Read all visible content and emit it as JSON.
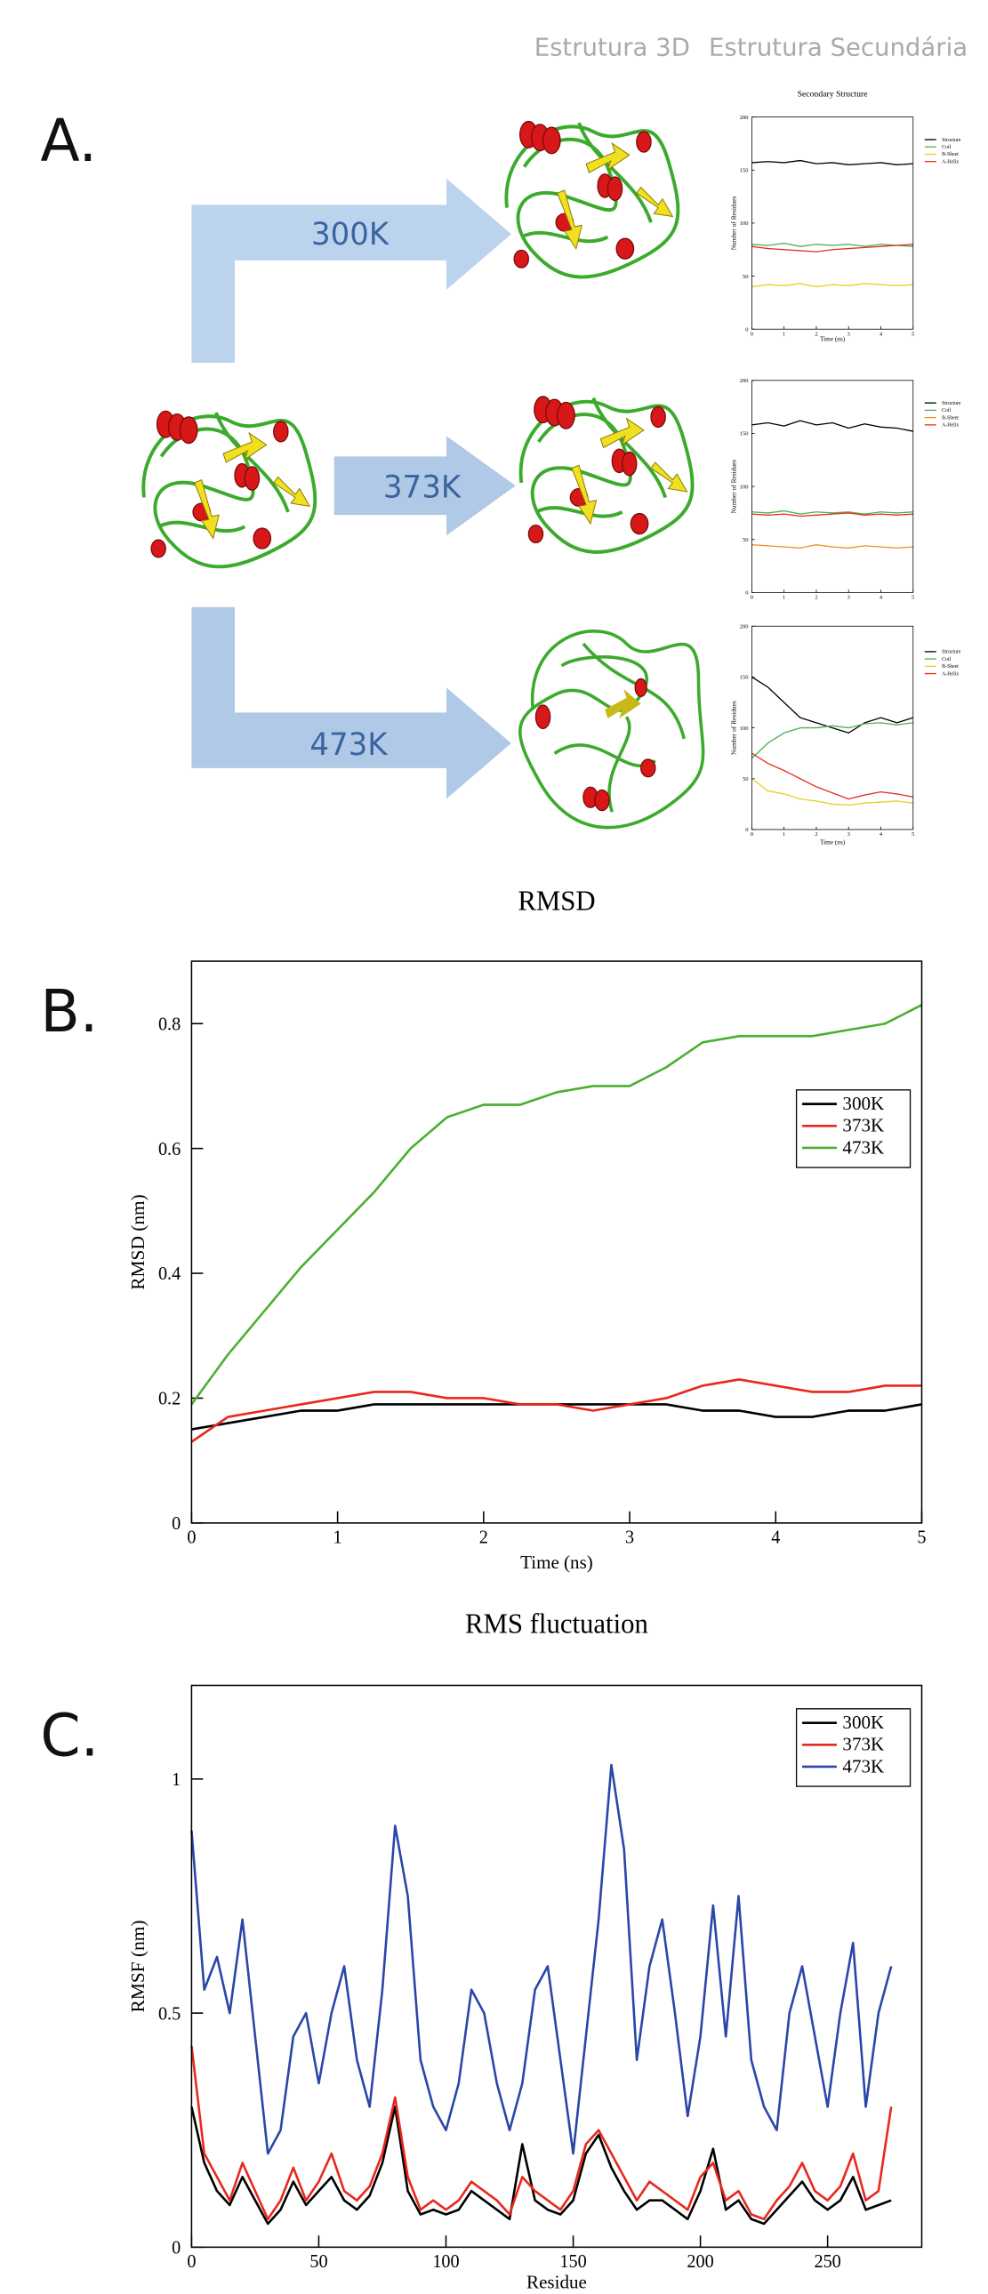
{
  "header": {
    "labels": [
      "Estrutura 3D",
      "Estrutura Secundária"
    ]
  },
  "panels": [
    "A.",
    "B.",
    "C."
  ],
  "arrows": [
    "300K",
    "373K",
    "473K"
  ],
  "chart_data": [
    {
      "type": "line",
      "title": "Secondary Structure",
      "x_label": "Time (ns)",
      "y_label": "Number of Residues",
      "x": [
        0,
        0.5,
        1,
        1.5,
        2,
        2.5,
        3,
        3.5,
        4,
        4.5,
        5
      ],
      "xlim": [
        0,
        5
      ],
      "ylim": [
        0,
        200
      ],
      "xticks": [
        0,
        1,
        2,
        3,
        4,
        5
      ],
      "yticks": [
        0,
        50,
        100,
        150,
        200
      ],
      "legend": "outside right",
      "series": [
        {
          "name": "Structure",
          "color": "#000000",
          "values": [
            157,
            158,
            157,
            159,
            156,
            157,
            155,
            156,
            157,
            155,
            156
          ]
        },
        {
          "name": "Coil",
          "color": "#4caf50",
          "values": [
            80,
            79,
            81,
            78,
            80,
            79,
            80,
            78,
            80,
            79,
            78
          ]
        },
        {
          "name": "B-Sheet",
          "color": "#e8cf20",
          "values": [
            40,
            42,
            41,
            43,
            40,
            42,
            41,
            43,
            42,
            41,
            42
          ]
        },
        {
          "name": "A-Helix",
          "color": "#e53020",
          "values": [
            78,
            76,
            75,
            74,
            73,
            75,
            76,
            77,
            78,
            79,
            80
          ]
        }
      ]
    },
    {
      "type": "line",
      "y_label": "Number of Residues",
      "x": [
        0,
        0.5,
        1,
        1.5,
        2,
        2.5,
        3,
        3.5,
        4,
        4.5,
        5
      ],
      "xlim": [
        0,
        5
      ],
      "ylim": [
        0,
        200
      ],
      "xticks": [
        0,
        1,
        2,
        3,
        4,
        5
      ],
      "yticks": [
        0,
        50,
        100,
        150,
        200
      ],
      "legend": "outside right",
      "series": [
        {
          "name": "Structure",
          "color": "#000000",
          "values": [
            158,
            160,
            157,
            162,
            158,
            160,
            155,
            159,
            156,
            155,
            152
          ]
        },
        {
          "name": "Coil",
          "color": "#4caf50",
          "values": [
            76,
            75,
            77,
            74,
            76,
            75,
            76,
            74,
            76,
            75,
            76
          ]
        },
        {
          "name": "B-Sheet",
          "color": "#f09020",
          "values": [
            45,
            44,
            43,
            42,
            45,
            43,
            42,
            44,
            43,
            42,
            43
          ]
        },
        {
          "name": "A-Helix",
          "color": "#e53020",
          "values": [
            74,
            73,
            74,
            72,
            73,
            74,
            75,
            73,
            74,
            73,
            74
          ]
        }
      ]
    },
    {
      "type": "line",
      "x_label": "Time (ns)",
      "y_label": "Number of Residues",
      "x": [
        0,
        0.5,
        1,
        1.5,
        2,
        2.5,
        3,
        3.5,
        4,
        4.5,
        5
      ],
      "xlim": [
        0,
        5
      ],
      "ylim": [
        0,
        200
      ],
      "xticks": [
        0,
        1,
        2,
        3,
        4,
        5
      ],
      "yticks": [
        0,
        50,
        100,
        150,
        200
      ],
      "legend": "outside right",
      "series": [
        {
          "name": "Structure",
          "color": "#000000",
          "values": [
            150,
            140,
            125,
            110,
            105,
            100,
            95,
            105,
            110,
            105,
            110
          ]
        },
        {
          "name": "Coil",
          "color": "#4caf50",
          "values": [
            70,
            85,
            95,
            100,
            100,
            102,
            100,
            104,
            105,
            103,
            105
          ]
        },
        {
          "name": "B-Sheet",
          "color": "#e8cf20",
          "values": [
            50,
            38,
            35,
            30,
            28,
            25,
            24,
            26,
            27,
            28,
            26
          ]
        },
        {
          "name": "A-Helix",
          "color": "#e53020",
          "values": [
            75,
            65,
            58,
            50,
            42,
            36,
            30,
            34,
            37,
            35,
            32
          ]
        }
      ]
    },
    {
      "type": "line",
      "title": "RMSD",
      "x_label": "Time (ns)",
      "y_label": "RMSD (nm)",
      "x": [
        0,
        0.25,
        0.5,
        0.75,
        1,
        1.25,
        1.5,
        1.75,
        2,
        2.25,
        2.5,
        2.75,
        3,
        3.25,
        3.5,
        3.75,
        4,
        4.25,
        4.5,
        4.75,
        5
      ],
      "xlim": [
        0,
        5
      ],
      "ylim": [
        0,
        0.9
      ],
      "xticks": [
        0,
        1,
        2,
        3,
        4,
        5
      ],
      "yticks": [
        0,
        0.2,
        0.4,
        0.6,
        0.8
      ],
      "legend": "upper right",
      "series": [
        {
          "name": "300K",
          "color": "#000000",
          "values": [
            0.15,
            0.16,
            0.17,
            0.18,
            0.18,
            0.19,
            0.19,
            0.19,
            0.19,
            0.19,
            0.19,
            0.19,
            0.19,
            0.19,
            0.18,
            0.18,
            0.17,
            0.17,
            0.18,
            0.18,
            0.19
          ]
        },
        {
          "name": "373K",
          "color": "#e8281e",
          "values": [
            0.13,
            0.17,
            0.18,
            0.19,
            0.2,
            0.21,
            0.21,
            0.2,
            0.2,
            0.19,
            0.19,
            0.18,
            0.19,
            0.2,
            0.22,
            0.23,
            0.22,
            0.21,
            0.21,
            0.22,
            0.22
          ]
        },
        {
          "name": "473K",
          "color": "#4caf32",
          "values": [
            0.19,
            0.27,
            0.34,
            0.41,
            0.47,
            0.53,
            0.6,
            0.65,
            0.67,
            0.67,
            0.69,
            0.7,
            0.7,
            0.73,
            0.77,
            0.78,
            0.78,
            0.78,
            0.79,
            0.8,
            0.83
          ]
        }
      ]
    },
    {
      "type": "line",
      "title": "RMS fluctuation",
      "x_label": "Residue",
      "y_label": "RMSF (nm)",
      "x": [
        0,
        5,
        10,
        15,
        20,
        25,
        30,
        35,
        40,
        45,
        50,
        55,
        60,
        65,
        70,
        75,
        80,
        85,
        90,
        95,
        100,
        105,
        110,
        115,
        120,
        125,
        130,
        135,
        140,
        145,
        150,
        155,
        160,
        165,
        170,
        175,
        180,
        185,
        190,
        195,
        200,
        205,
        210,
        215,
        220,
        225,
        230,
        235,
        240,
        245,
        250,
        255,
        260,
        265,
        270,
        275
      ],
      "xlim": [
        0,
        287
      ],
      "ylim": [
        0,
        1.2
      ],
      "xticks": [
        0,
        50,
        100,
        150,
        200,
        250
      ],
      "yticks": [
        0,
        0.5,
        1
      ],
      "legend": "upper right",
      "series": [
        {
          "name": "300K",
          "color": "#000000",
          "values": [
            0.3,
            0.18,
            0.12,
            0.09,
            0.15,
            0.1,
            0.05,
            0.08,
            0.14,
            0.09,
            0.12,
            0.15,
            0.1,
            0.08,
            0.11,
            0.18,
            0.3,
            0.12,
            0.07,
            0.08,
            0.07,
            0.08,
            0.12,
            0.1,
            0.08,
            0.06,
            0.22,
            0.1,
            0.08,
            0.07,
            0.1,
            0.2,
            0.24,
            0.17,
            0.12,
            0.08,
            0.1,
            0.1,
            0.08,
            0.06,
            0.12,
            0.21,
            0.08,
            0.1,
            0.06,
            0.05,
            0.08,
            0.11,
            0.14,
            0.1,
            0.08,
            0.1,
            0.15,
            0.08,
            0.09,
            0.1
          ]
        },
        {
          "name": "373K",
          "color": "#e8281e",
          "values": [
            0.43,
            0.2,
            0.15,
            0.1,
            0.18,
            0.12,
            0.06,
            0.1,
            0.17,
            0.1,
            0.14,
            0.2,
            0.12,
            0.1,
            0.13,
            0.2,
            0.32,
            0.15,
            0.08,
            0.1,
            0.08,
            0.1,
            0.14,
            0.12,
            0.1,
            0.07,
            0.15,
            0.12,
            0.1,
            0.08,
            0.12,
            0.22,
            0.25,
            0.2,
            0.15,
            0.1,
            0.14,
            0.12,
            0.1,
            0.08,
            0.15,
            0.18,
            0.1,
            0.12,
            0.07,
            0.06,
            0.1,
            0.13,
            0.18,
            0.12,
            0.1,
            0.13,
            0.2,
            0.1,
            0.12,
            0.3
          ]
        },
        {
          "name": "473K",
          "color": "#2a46a8",
          "values": [
            0.89,
            0.55,
            0.62,
            0.5,
            0.7,
            0.45,
            0.2,
            0.25,
            0.45,
            0.5,
            0.35,
            0.5,
            0.6,
            0.4,
            0.3,
            0.55,
            0.9,
            0.75,
            0.4,
            0.3,
            0.25,
            0.35,
            0.55,
            0.5,
            0.35,
            0.25,
            0.35,
            0.55,
            0.6,
            0.4,
            0.2,
            0.45,
            0.7,
            1.03,
            0.85,
            0.4,
            0.6,
            0.7,
            0.5,
            0.28,
            0.45,
            0.73,
            0.45,
            0.75,
            0.4,
            0.3,
            0.25,
            0.5,
            0.6,
            0.45,
            0.3,
            0.5,
            0.65,
            0.3,
            0.5,
            0.6
          ]
        }
      ]
    }
  ]
}
